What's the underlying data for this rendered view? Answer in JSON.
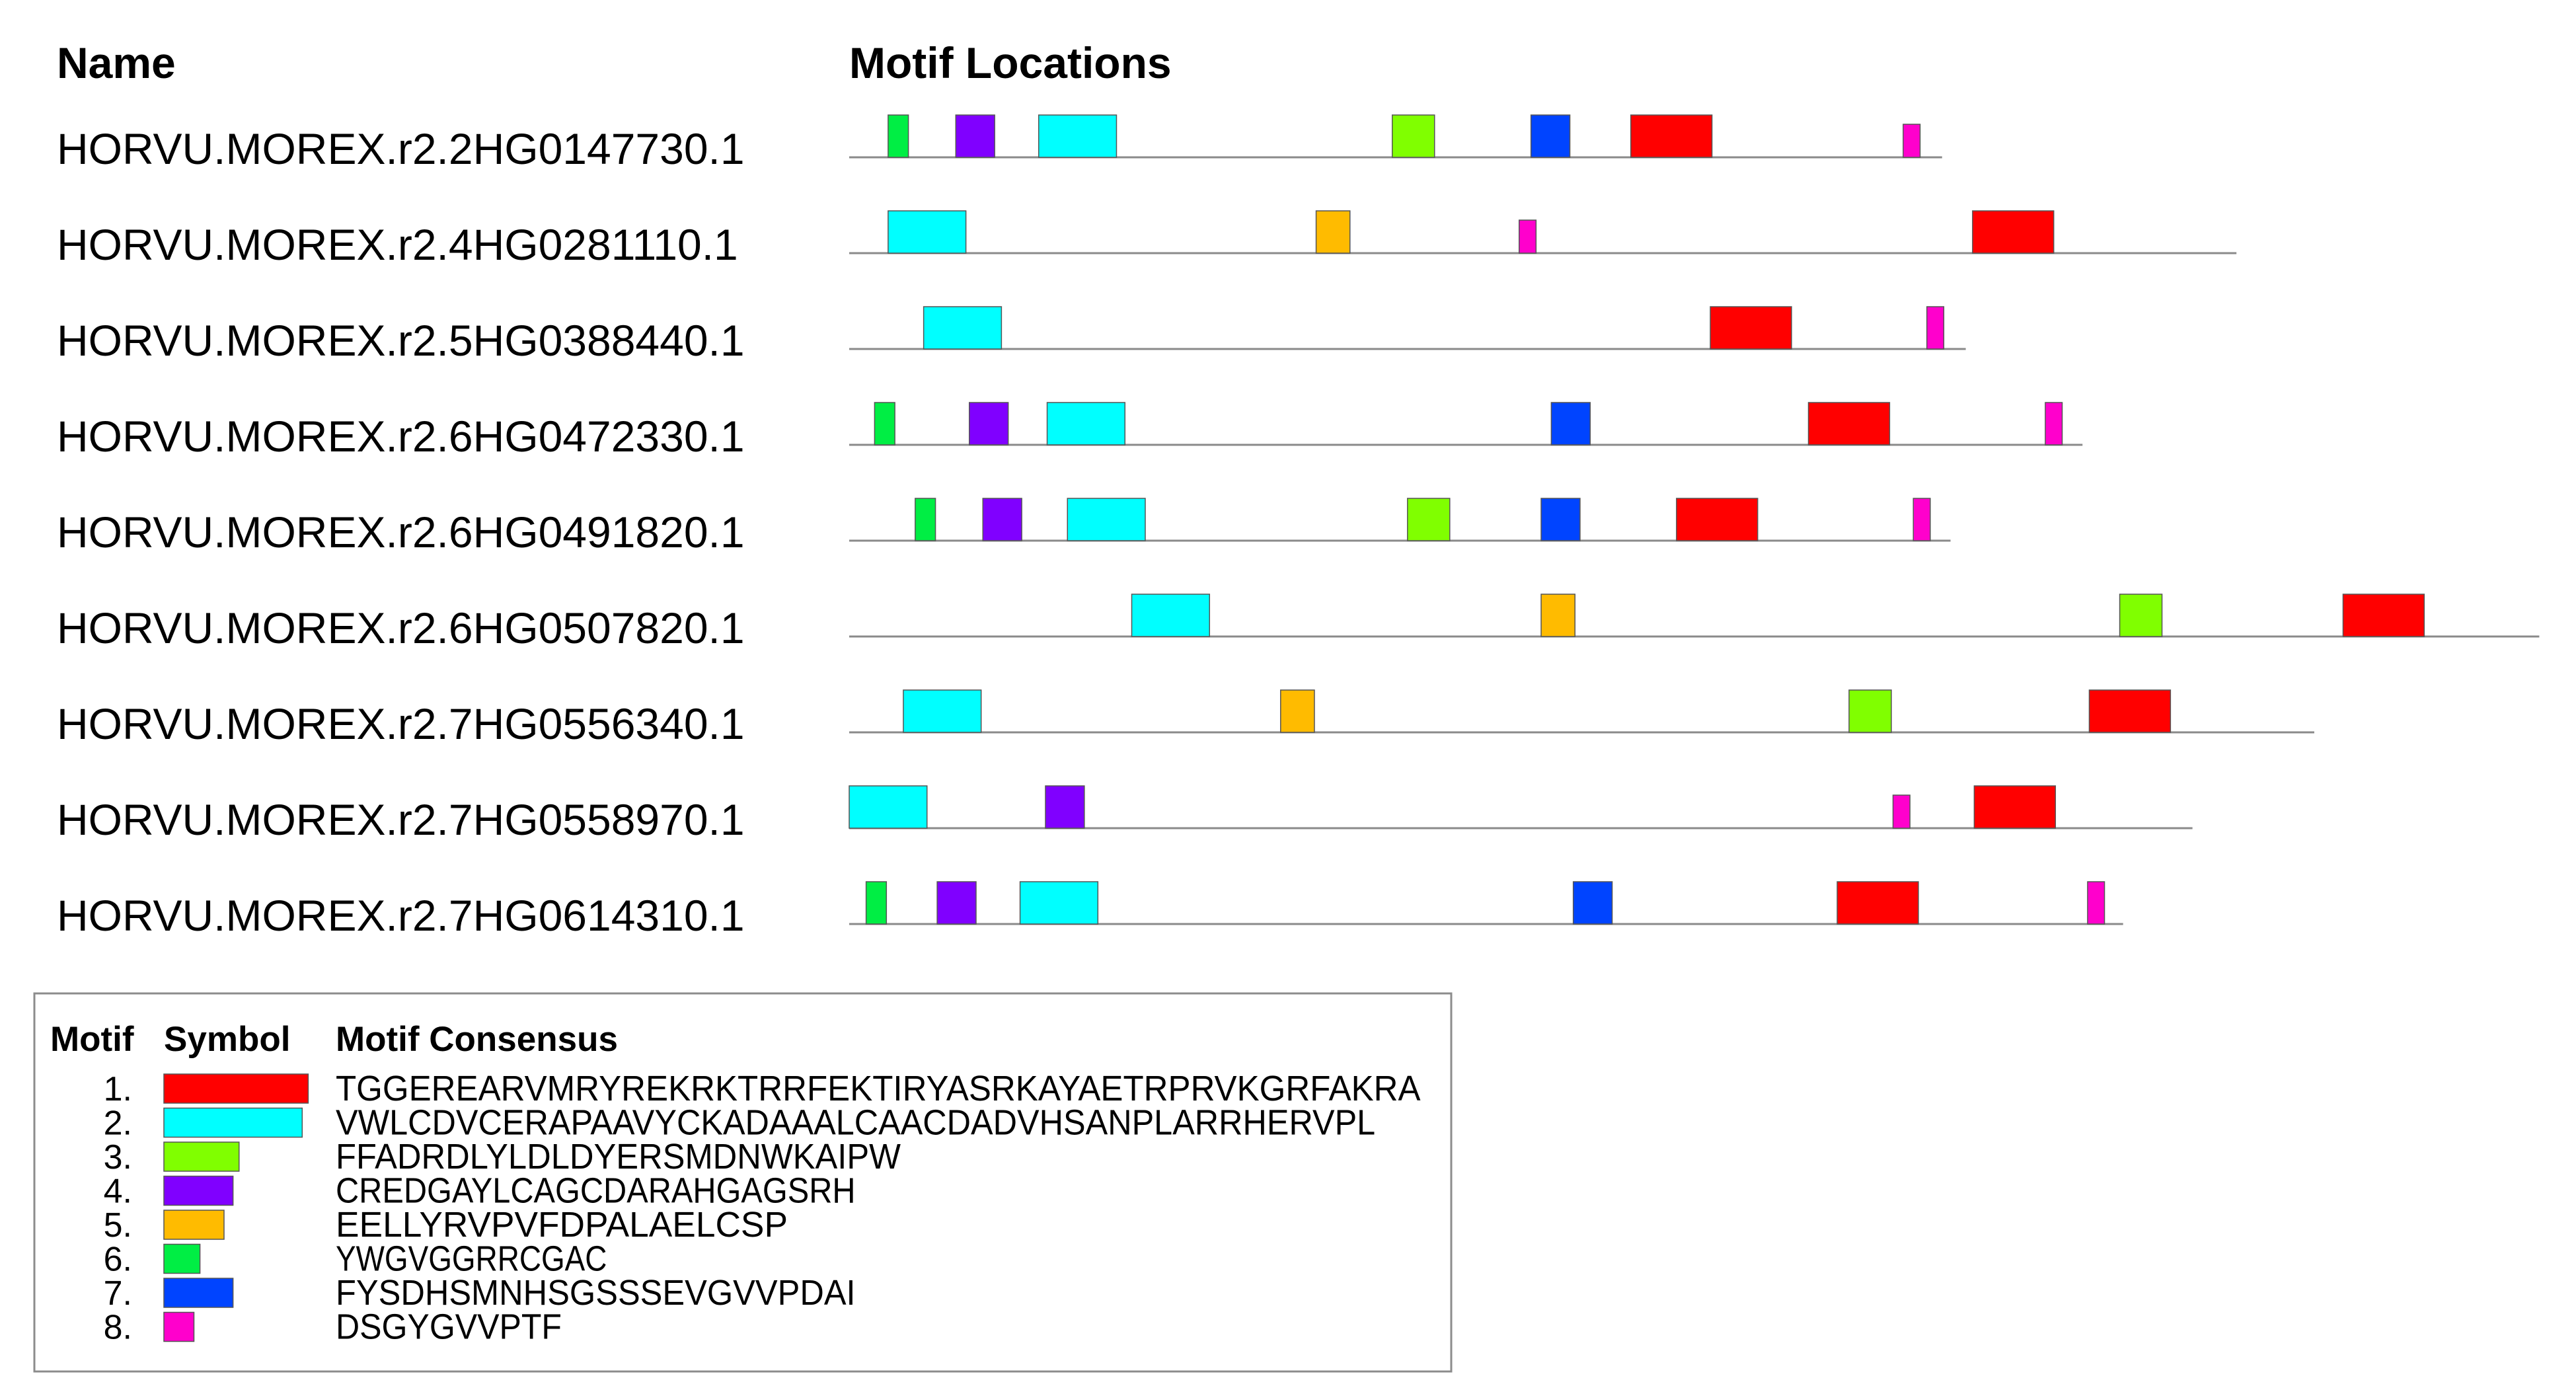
{
  "headers": {
    "name": "Name",
    "locations": "Motif Locations"
  },
  "sequence_max": 1000,
  "motifs": [
    {
      "id": "1",
      "number": "1.",
      "color": "#ff0000",
      "consensus": "TGGEREARVMRYREKRKTRRFEKTIRYASRKAYAETRPRVKGRFAKRA",
      "length": 48
    },
    {
      "id": "2",
      "number": "2.",
      "color": "#00ffff",
      "consensus": "VWLCDVCERAPAAVYCKADAAALCAACDADVHSANPLARRHERVPL",
      "length": 46
    },
    {
      "id": "3",
      "number": "3.",
      "color": "#80ff00",
      "consensus": "FFADRDLYLDLDYERSMDNWKAIPW",
      "length": 25
    },
    {
      "id": "4",
      "number": "4.",
      "color": "#8000ff",
      "consensus": "CREDGAYLCAGCDARAHGAGSRH",
      "length": 23
    },
    {
      "id": "5",
      "number": "5.",
      "color": "#ffbb00",
      "consensus": "EELLYRVPVFDPALAELCSP",
      "length": 20
    },
    {
      "id": "6",
      "number": "6.",
      "color": "#00ee44",
      "consensus": "YWGVGGRRCGAC",
      "length": 12
    },
    {
      "id": "7",
      "number": "7.",
      "color": "#0044ff",
      "consensus": "FYSDHSMNHSGSSSEVGVVPDAI",
      "length": 23
    },
    {
      "id": "8",
      "number": "8.",
      "color": "#ff00cc",
      "consensus": "DSGYGVVPTF",
      "length": 10
    }
  ],
  "legend": {
    "col_motif": "Motif",
    "col_symbol": "Symbol",
    "col_consensus": "Motif Consensus"
  },
  "sequences": [
    {
      "name": "HORVU.MOREX.r2.2HG0147730.1",
      "length": 646,
      "sites": [
        {
          "motif": "6",
          "start": 24,
          "strand": "+"
        },
        {
          "motif": "4",
          "start": 64,
          "strand": "+"
        },
        {
          "motif": "2",
          "start": 113,
          "strand": "+"
        },
        {
          "motif": "3",
          "start": 322,
          "strand": "+"
        },
        {
          "motif": "7",
          "start": 404,
          "strand": "+"
        },
        {
          "motif": "1",
          "start": 463,
          "strand": "+"
        },
        {
          "motif": "8",
          "start": 624,
          "strand": "-"
        }
      ]
    },
    {
      "name": "HORVU.MOREX.r2.4HG0281110.1",
      "length": 820,
      "sites": [
        {
          "motif": "2",
          "start": 24,
          "strand": "+"
        },
        {
          "motif": "5",
          "start": 277,
          "strand": "+"
        },
        {
          "motif": "8",
          "start": 397,
          "strand": "-"
        },
        {
          "motif": "1",
          "start": 665,
          "strand": "+"
        }
      ]
    },
    {
      "name": "HORVU.MOREX.r2.5HG0388440.1",
      "length": 660,
      "sites": [
        {
          "motif": "2",
          "start": 45,
          "strand": "+"
        },
        {
          "motif": "1",
          "start": 510,
          "strand": "+"
        },
        {
          "motif": "8",
          "start": 638,
          "strand": "+"
        }
      ]
    },
    {
      "name": "HORVU.MOREX.r2.6HG0472330.1",
      "length": 729,
      "sites": [
        {
          "motif": "6",
          "start": 16,
          "strand": "+"
        },
        {
          "motif": "4",
          "start": 72,
          "strand": "+"
        },
        {
          "motif": "2",
          "start": 118,
          "strand": "+"
        },
        {
          "motif": "7",
          "start": 416,
          "strand": "+"
        },
        {
          "motif": "1",
          "start": 568,
          "strand": "+"
        },
        {
          "motif": "8",
          "start": 708,
          "strand": "+"
        }
      ]
    },
    {
      "name": "HORVU.MOREX.r2.6HG0491820.1",
      "length": 651,
      "sites": [
        {
          "motif": "6",
          "start": 40,
          "strand": "+"
        },
        {
          "motif": "4",
          "start": 80,
          "strand": "+"
        },
        {
          "motif": "2",
          "start": 130,
          "strand": "+"
        },
        {
          "motif": "3",
          "start": 331,
          "strand": "+"
        },
        {
          "motif": "7",
          "start": 410,
          "strand": "+"
        },
        {
          "motif": "1",
          "start": 490,
          "strand": "+"
        },
        {
          "motif": "8",
          "start": 630,
          "strand": "+"
        }
      ]
    },
    {
      "name": "HORVU.MOREX.r2.6HG0507820.1",
      "length": 999,
      "sites": [
        {
          "motif": "2",
          "start": 168,
          "strand": "+"
        },
        {
          "motif": "5",
          "start": 410,
          "strand": "+"
        },
        {
          "motif": "3",
          "start": 752,
          "strand": "+"
        },
        {
          "motif": "1",
          "start": 884,
          "strand": "+"
        }
      ]
    },
    {
      "name": "HORVU.MOREX.r2.7HG0556340.1",
      "length": 866,
      "sites": [
        {
          "motif": "2",
          "start": 33,
          "strand": "+"
        },
        {
          "motif": "5",
          "start": 256,
          "strand": "+"
        },
        {
          "motif": "3",
          "start": 592,
          "strand": "+"
        },
        {
          "motif": "1",
          "start": 734,
          "strand": "+"
        }
      ]
    },
    {
      "name": "HORVU.MOREX.r2.7HG0558970.1",
      "length": 794,
      "sites": [
        {
          "motif": "2",
          "start": 1,
          "strand": "+"
        },
        {
          "motif": "4",
          "start": 117,
          "strand": "+"
        },
        {
          "motif": "8",
          "start": 618,
          "strand": "-"
        },
        {
          "motif": "1",
          "start": 666,
          "strand": "+"
        }
      ]
    },
    {
      "name": "HORVU.MOREX.r2.7HG0614310.1",
      "length": 753,
      "sites": [
        {
          "motif": "6",
          "start": 11,
          "strand": "+"
        },
        {
          "motif": "4",
          "start": 53,
          "strand": "+"
        },
        {
          "motif": "2",
          "start": 102,
          "strand": "+"
        },
        {
          "motif": "7",
          "start": 429,
          "strand": "+"
        },
        {
          "motif": "1",
          "start": 585,
          "strand": "+"
        },
        {
          "motif": "8",
          "start": 733,
          "strand": "+"
        }
      ]
    }
  ]
}
